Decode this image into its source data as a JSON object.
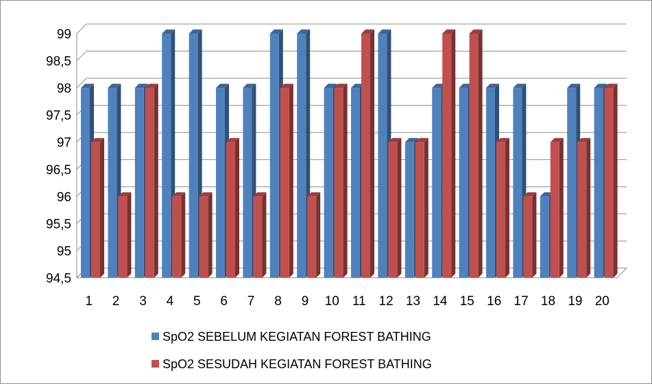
{
  "chart_data": {
    "type": "bar",
    "categories": [
      "1",
      "2",
      "3",
      "4",
      "5",
      "6",
      "7",
      "8",
      "9",
      "10",
      "11",
      "12",
      "13",
      "14",
      "15",
      "16",
      "17",
      "18",
      "19",
      "20"
    ],
    "series": [
      {
        "name": "SpO2 SEBELUM KEGIATAN FOREST BATHING",
        "color": "#4f81bd",
        "values": [
          98,
          98,
          98,
          99,
          99,
          98,
          98,
          99,
          99,
          98,
          98,
          99,
          97,
          98,
          98,
          98,
          98,
          96,
          98,
          98
        ]
      },
      {
        "name": "SpO2 SESUDAH KEGIATAN FOREST BATHING",
        "color": "#c0504d",
        "values": [
          97,
          96,
          98,
          96,
          96,
          97,
          96,
          98,
          96,
          98,
          99,
          97,
          97,
          99,
          99,
          97,
          96,
          97,
          97,
          98
        ]
      }
    ],
    "y_ticks": [
      "94,5",
      "95",
      "95,5",
      "96",
      "96,5",
      "97",
      "97,5",
      "98",
      "98,5",
      "99"
    ],
    "ylim": [
      94.5,
      99
    ],
    "grid": true,
    "legend_position": "bottom",
    "title": "",
    "xlabel": "",
    "ylabel": ""
  }
}
